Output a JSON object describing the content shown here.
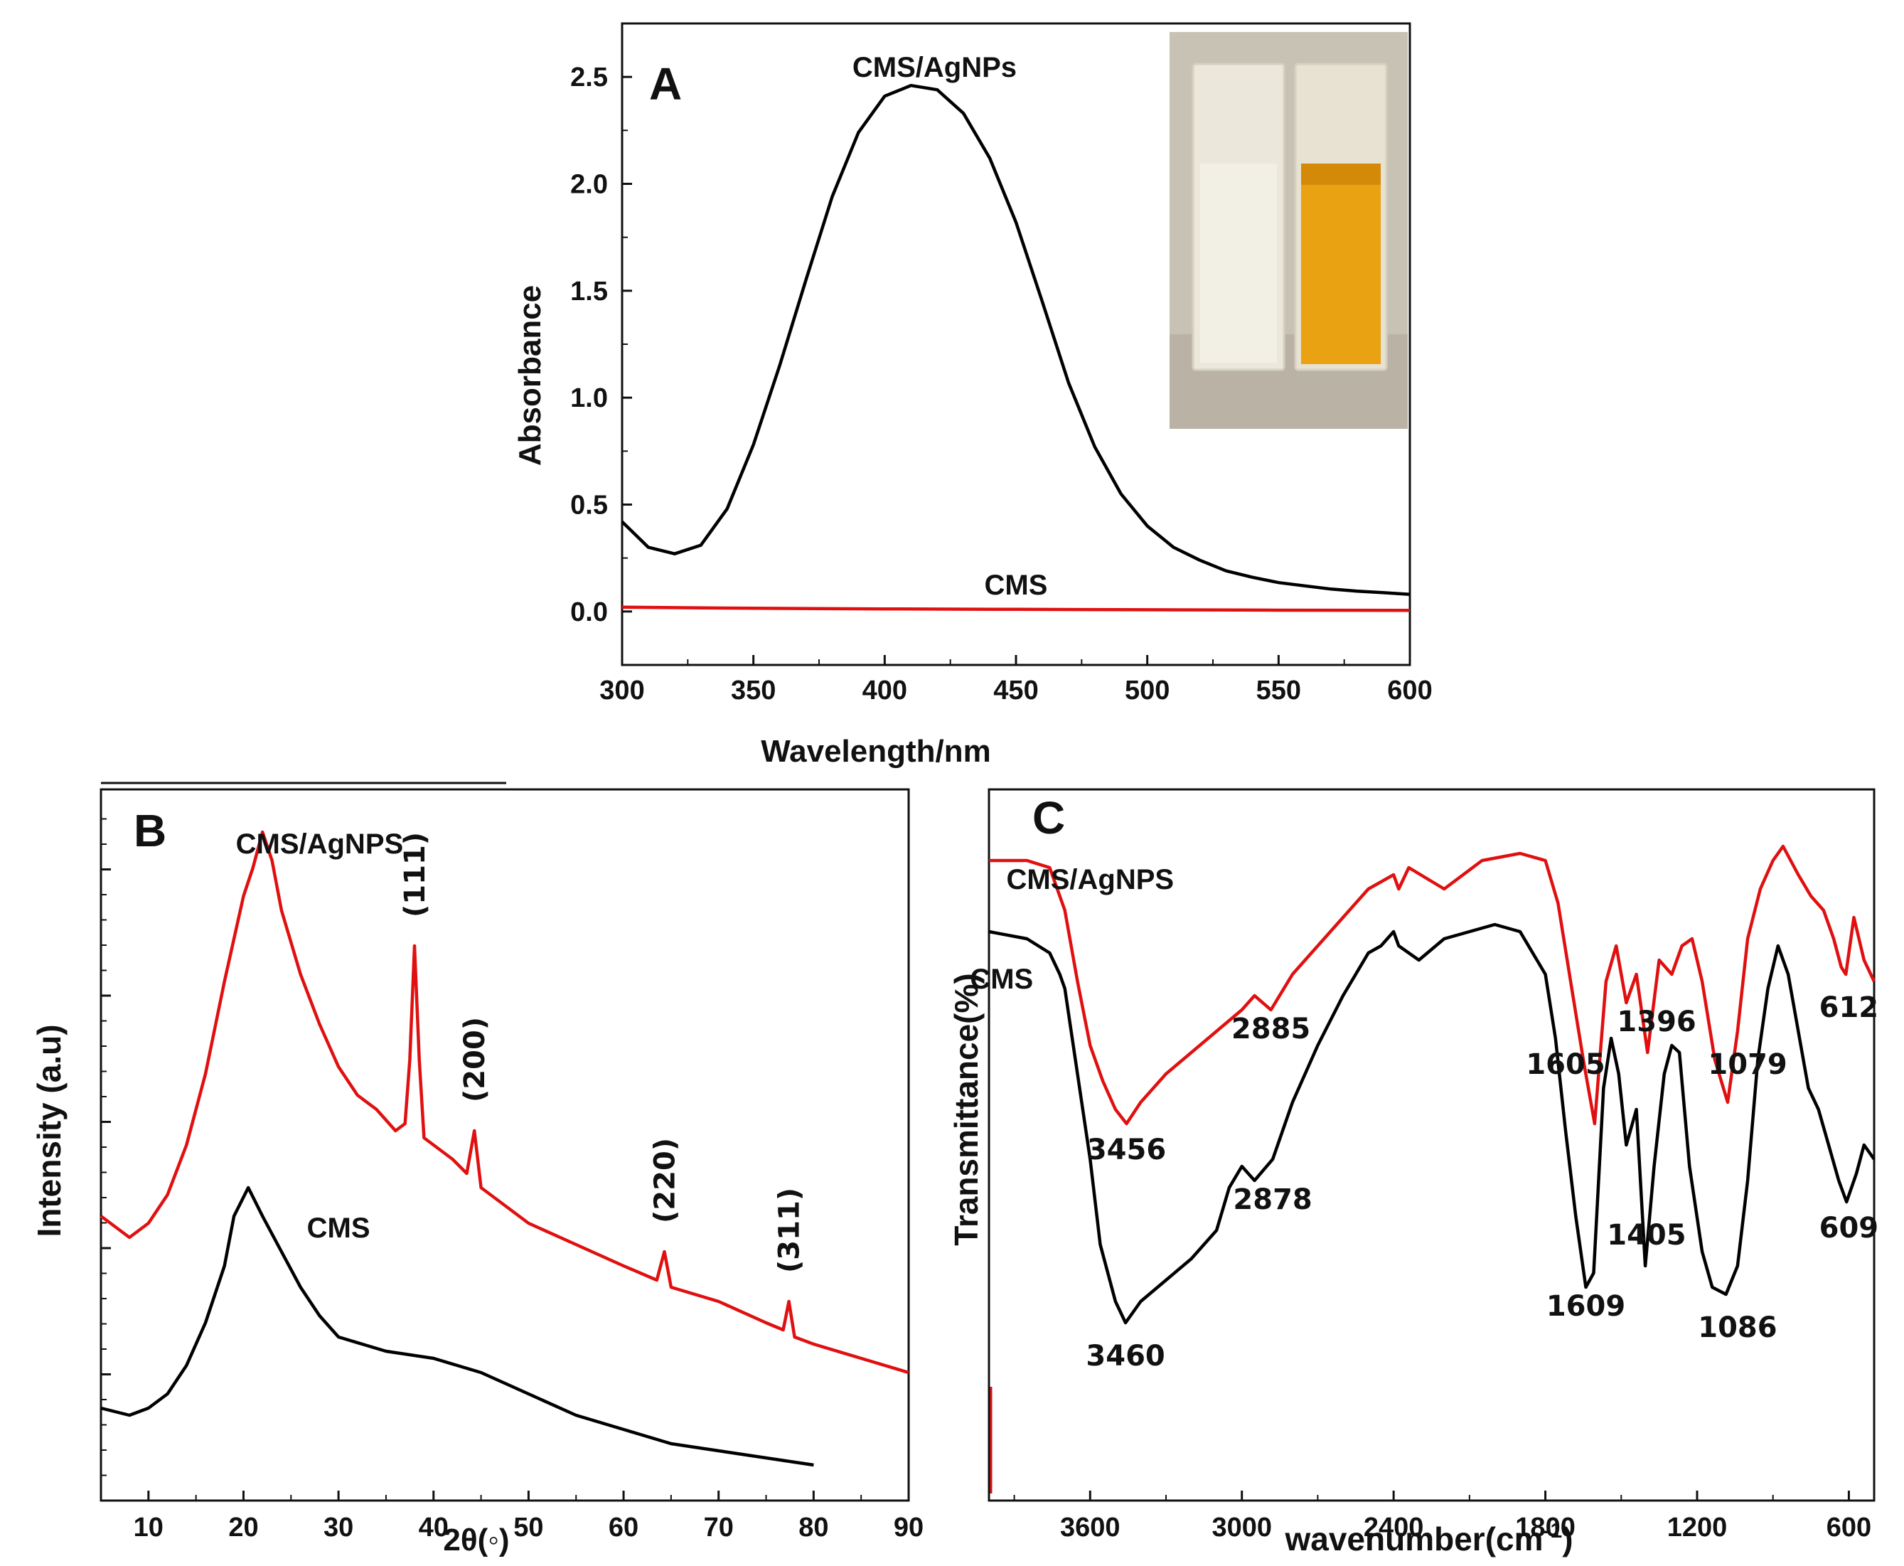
{
  "figure": {
    "panels": [
      "A",
      "B",
      "C"
    ]
  },
  "chart_data": [
    {
      "panel": "A",
      "type": "line",
      "title": "",
      "xlabel": "Wavelength/nm",
      "ylabel": "Absorbance",
      "xlim": [
        300,
        600
      ],
      "ylim": [
        -0.25,
        2.75
      ],
      "xticks": [
        "300",
        "350",
        "400",
        "450",
        "500",
        "550",
        "600"
      ],
      "yticks": [
        "0.0",
        "0.5",
        "1.0",
        "1.5",
        "2.0",
        "2.5"
      ],
      "colors": {
        "CMS/AgNPs": "#000000",
        "CMS": "#e01010"
      },
      "series": [
        {
          "name": "CMS/AgNPs",
          "x": [
            300,
            310,
            320,
            330,
            340,
            350,
            360,
            370,
            380,
            390,
            400,
            410,
            420,
            430,
            440,
            450,
            460,
            470,
            480,
            490,
            500,
            510,
            520,
            530,
            540,
            550,
            560,
            570,
            580,
            590,
            600
          ],
          "y": [
            0.42,
            0.3,
            0.27,
            0.31,
            0.48,
            0.78,
            1.15,
            1.55,
            1.94,
            2.24,
            2.41,
            2.46,
            2.44,
            2.33,
            2.12,
            1.82,
            1.45,
            1.07,
            0.77,
            0.55,
            0.4,
            0.3,
            0.24,
            0.19,
            0.16,
            0.135,
            0.12,
            0.105,
            0.095,
            0.088,
            0.08
          ]
        },
        {
          "name": "CMS",
          "x": [
            300,
            350,
            400,
            450,
            500,
            550,
            600
          ],
          "y": [
            0.02,
            0.015,
            0.012,
            0.01,
            0.008,
            0.006,
            0.005
          ]
        }
      ],
      "annotations": [
        {
          "text": "CMS/AgNPs",
          "x": 419,
          "y": 2.5
        },
        {
          "text": "CMS",
          "x": 450,
          "y": 0.08
        }
      ],
      "inset": {
        "content": "photo of two cuvettes: colorless CMS solution and yellow-orange CMS/AgNPs solution"
      }
    },
    {
      "panel": "B",
      "type": "line",
      "title": "",
      "xlabel": "2θ(◦)",
      "ylabel": "Intensity  (a.u)",
      "xlim": [
        5,
        90
      ],
      "ylim": [
        0,
        100
      ],
      "xticks": [
        "10",
        "20",
        "30",
        "40",
        "50",
        "60",
        "70",
        "80",
        "90"
      ],
      "colors": {
        "CMS/AgNPS": "#e01010",
        "CMS": "#000000"
      },
      "series": [
        {
          "name": "CMS/AgNPS",
          "x": [
            5,
            8,
            10,
            12,
            14,
            16,
            18,
            20,
            21,
            22,
            23,
            24,
            26,
            28,
            30,
            32,
            34,
            36,
            37,
            37.5,
            38,
            38.5,
            39,
            40,
            42,
            43.5,
            44.3,
            45,
            46,
            48,
            50,
            55,
            60,
            63.5,
            64.3,
            65,
            70,
            75,
            76.8,
            77.4,
            78,
            80,
            85,
            90
          ],
          "y": [
            40,
            37,
            39,
            43,
            50,
            60,
            73,
            85,
            89,
            94,
            90,
            83,
            74,
            67,
            61,
            57,
            55,
            52,
            53,
            62,
            78,
            62,
            51,
            50,
            48,
            46,
            52,
            44,
            43,
            41,
            39,
            36,
            33,
            31,
            35,
            30,
            28,
            25,
            24,
            28,
            23,
            22,
            20,
            18
          ]
        },
        {
          "name": "CMS",
          "x": [
            5,
            8,
            10,
            12,
            14,
            16,
            18,
            19,
            20.5,
            22,
            24,
            26,
            28,
            30,
            35,
            40,
            45,
            50,
            55,
            60,
            65,
            70,
            75,
            80
          ],
          "y": [
            13,
            12,
            13,
            15,
            19,
            25,
            33,
            40,
            44,
            40,
            35,
            30,
            26,
            23,
            21,
            20,
            18,
            15,
            12,
            10,
            8,
            7,
            6,
            5
          ]
        }
      ],
      "annotations": [
        {
          "text": "CMS/AgNPS",
          "x": 28,
          "y": 91
        },
        {
          "text": "(111)",
          "x": 38,
          "y": 82
        },
        {
          "text": "(200)",
          "x": 44.3,
          "y": 56
        },
        {
          "text": "(220)",
          "x": 64.3,
          "y": 39
        },
        {
          "text": "(311)",
          "x": 77.4,
          "y": 32
        },
        {
          "text": "CMS",
          "x": 30,
          "y": 37
        }
      ]
    },
    {
      "panel": "C",
      "type": "line",
      "title": "",
      "xlabel": "wavenumber(cm",
      "xlabel_sup": "-1",
      "xlabel_close": ")",
      "ylabel": "Transmittance(%)",
      "xlim": [
        4000,
        500
      ],
      "ylim": [
        0,
        100
      ],
      "xticks": [
        "3600",
        "3000",
        "2400",
        "1800",
        "1200",
        "600"
      ],
      "colors": {
        "CMS/AgNPS": "#e01010",
        "CMS": "#000000"
      },
      "series": [
        {
          "name": "CMS/AgNPS",
          "x": [
            4000,
            3850,
            3760,
            3700,
            3650,
            3600,
            3550,
            3500,
            3456,
            3400,
            3300,
            3200,
            3100,
            3000,
            2950,
            2885,
            2800,
            2700,
            2600,
            2500,
            2450,
            2400,
            2380,
            2340,
            2200,
            2050,
            1900,
            1800,
            1750,
            1700,
            1650,
            1605,
            1560,
            1520,
            1480,
            1440,
            1396,
            1350,
            1300,
            1260,
            1220,
            1180,
            1130,
            1079,
            1040,
            1000,
            950,
            900,
            860,
            800,
            750,
            700,
            660,
            630,
            612,
            580,
            540,
            500
          ],
          "y": [
            90,
            90,
            89,
            83,
            73,
            64,
            59,
            55,
            53,
            56,
            60,
            63,
            66,
            69,
            71,
            69,
            74,
            78,
            82,
            86,
            87,
            88,
            86,
            89,
            86,
            90,
            91,
            90,
            84,
            73,
            62,
            53,
            73,
            78,
            70,
            74,
            63,
            76,
            74,
            78,
            79,
            73,
            62,
            56,
            66,
            79,
            86,
            90,
            92,
            88,
            85,
            83,
            79,
            75,
            74,
            82,
            76,
            73
          ]
        },
        {
          "name": "CMS",
          "x": [
            4000,
            3850,
            3760,
            3720,
            3700,
            3650,
            3600,
            3560,
            3500,
            3460,
            3400,
            3300,
            3200,
            3100,
            3050,
            3000,
            2950,
            2878,
            2800,
            2700,
            2600,
            2500,
            2450,
            2400,
            2380,
            2300,
            2200,
            2000,
            1900,
            1800,
            1760,
            1720,
            1680,
            1640,
            1609,
            1570,
            1540,
            1510,
            1480,
            1440,
            1405,
            1370,
            1330,
            1300,
            1270,
            1230,
            1180,
            1140,
            1086,
            1040,
            1000,
            960,
            920,
            880,
            840,
            800,
            760,
            720,
            680,
            640,
            609,
            570,
            540,
            500
          ],
          "y": [
            80,
            79,
            77,
            74,
            72,
            60,
            48,
            36,
            28,
            25,
            28,
            31,
            34,
            38,
            44,
            47,
            45,
            48,
            56,
            64,
            71,
            77,
            78,
            80,
            78,
            76,
            79,
            81,
            80,
            74,
            65,
            52,
            40,
            30,
            32,
            58,
            65,
            60,
            50,
            55,
            33,
            47,
            60,
            64,
            63,
            47,
            35,
            30,
            29,
            33,
            45,
            62,
            72,
            78,
            74,
            66,
            58,
            55,
            50,
            45,
            42,
            46,
            50,
            48
          ]
        }
      ],
      "annotations": [
        {
          "text": "CMS/AgNPS",
          "x": 3600,
          "y": 86
        },
        {
          "text": "CMS",
          "x": 3950,
          "y": 72
        },
        {
          "text": "3456",
          "x": 3456,
          "y": 48
        },
        {
          "text": "2885",
          "x": 2885,
          "y": 65
        },
        {
          "text": "1605",
          "x": 1720,
          "y": 60
        },
        {
          "text": "1396",
          "x": 1360,
          "y": 66
        },
        {
          "text": "1079",
          "x": 1000,
          "y": 60
        },
        {
          "text": "612",
          "x": 600,
          "y": 68
        },
        {
          "text": "2878",
          "x": 2878,
          "y": 41
        },
        {
          "text": "3460",
          "x": 3460,
          "y": 19
        },
        {
          "text": "1609",
          "x": 1640,
          "y": 26
        },
        {
          "text": "1405",
          "x": 1400,
          "y": 36
        },
        {
          "text": "1086",
          "x": 1040,
          "y": 23
        },
        {
          "text": "609",
          "x": 600,
          "y": 37
        }
      ]
    }
  ]
}
